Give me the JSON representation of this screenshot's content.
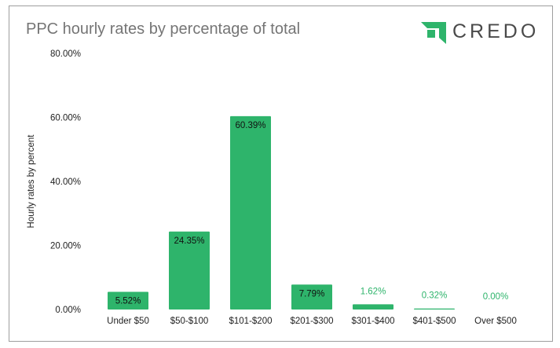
{
  "chart_data": {
    "type": "bar",
    "title": "PPC hourly rates by percentage of total",
    "xlabel": "",
    "ylabel": "Hourly rates by percent",
    "ylim": [
      0,
      80
    ],
    "yticks": [
      "0.00%",
      "20.00%",
      "40.00%",
      "60.00%",
      "80.00%"
    ],
    "ytick_values": [
      0,
      20,
      40,
      60,
      80
    ],
    "grid": false,
    "categories": [
      "Under $50",
      "$50-$100",
      "$101-$200",
      "$201-$300",
      "$301-$400",
      "$401-$500",
      "Over $500"
    ],
    "values": [
      5.52,
      24.35,
      60.39,
      7.79,
      1.62,
      0.32,
      0.0
    ],
    "data_labels": [
      "5.52%",
      "24.35%",
      "60.39%",
      "7.79%",
      "1.62%",
      "0.32%",
      "0.00%"
    ],
    "bar_color": "#2eb46b"
  },
  "logo": {
    "text": "CREDO",
    "color": "#2eb46b",
    "text_color": "#4a4a4a"
  }
}
